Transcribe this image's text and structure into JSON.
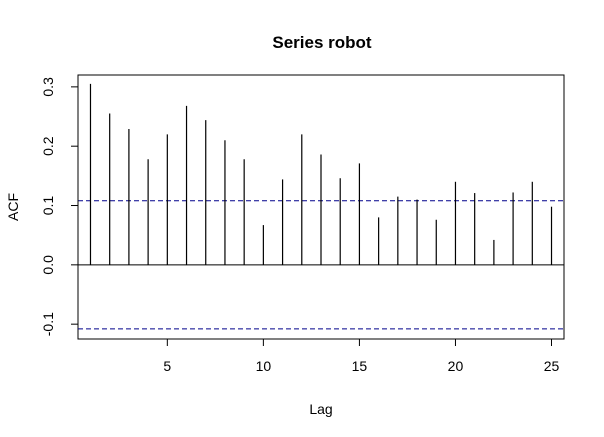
{
  "chart_data": {
    "type": "bar",
    "title": "Series robot",
    "xlabel": "Lag",
    "ylabel": "ACF",
    "xlim": [
      0.35,
      25.65
    ],
    "ylim": [
      -0.125,
      0.32
    ],
    "x_ticks": [
      5,
      10,
      15,
      20,
      25
    ],
    "y_ticks": [
      -0.1,
      0.0,
      0.1,
      0.2,
      0.3
    ],
    "y_tick_labels": [
      "-0.1",
      "0.0",
      "0.1",
      "0.2",
      "0.3"
    ],
    "lags": [
      1,
      2,
      3,
      4,
      5,
      6,
      7,
      8,
      9,
      10,
      11,
      12,
      13,
      14,
      15,
      16,
      17,
      18,
      19,
      20,
      21,
      22,
      23,
      24,
      25
    ],
    "values": [
      0.305,
      0.255,
      0.229,
      0.178,
      0.22,
      0.268,
      0.244,
      0.21,
      0.178,
      0.067,
      0.144,
      0.22,
      0.186,
      0.146,
      0.171,
      0.08,
      0.115,
      0.11,
      0.076,
      0.14,
      0.121,
      0.042,
      0.122,
      0.14,
      0.098
    ],
    "confidence_bound": 0.108,
    "colors": {
      "bars": "#000000",
      "bounds": "#00008B",
      "frame": "#000000"
    },
    "grid": false
  }
}
